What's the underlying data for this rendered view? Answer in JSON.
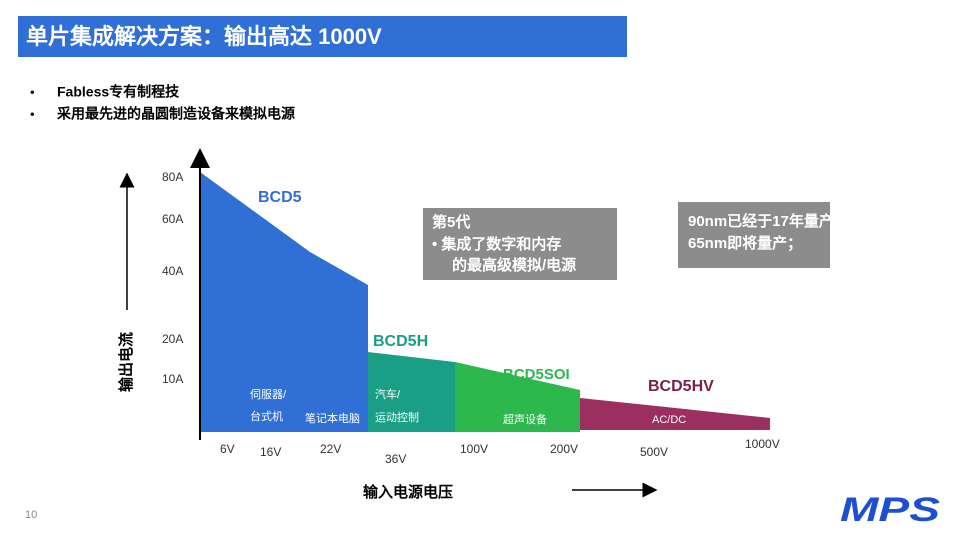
{
  "title": "单片集成解决方案：输出高达 1000V",
  "bullets": [
    "Fabless专有制程技",
    "采用最先进的晶圆制造设备来模拟电源"
  ],
  "y_axis": {
    "label": "输出电流",
    "ticks": [
      "80A",
      "60A",
      "40A",
      "20A",
      "10A"
    ]
  },
  "x_axis": {
    "label": "输入电源电压",
    "ticks": [
      "6V",
      "16V",
      "22V",
      "36V",
      "100V",
      "200V",
      "500V",
      "1000V"
    ]
  },
  "regions": [
    "BCD5",
    "BCD5H",
    "BCD5SOI",
    "BCD5HV"
  ],
  "callouts": [
    {
      "lines": [
        "第5代",
        "• 集成了数字和内存",
        "的最高级模拟/电源"
      ]
    },
    {
      "lines": [
        "90nm已经于17年量产；",
        "65nm即将量产；"
      ]
    }
  ],
  "applications": [
    "伺服器/",
    "台式机",
    "笔记本电脑",
    "汽车/",
    "运动控制",
    "超声设备",
    "AC/DC"
  ],
  "page_number": "10",
  "logo": "MPS"
}
